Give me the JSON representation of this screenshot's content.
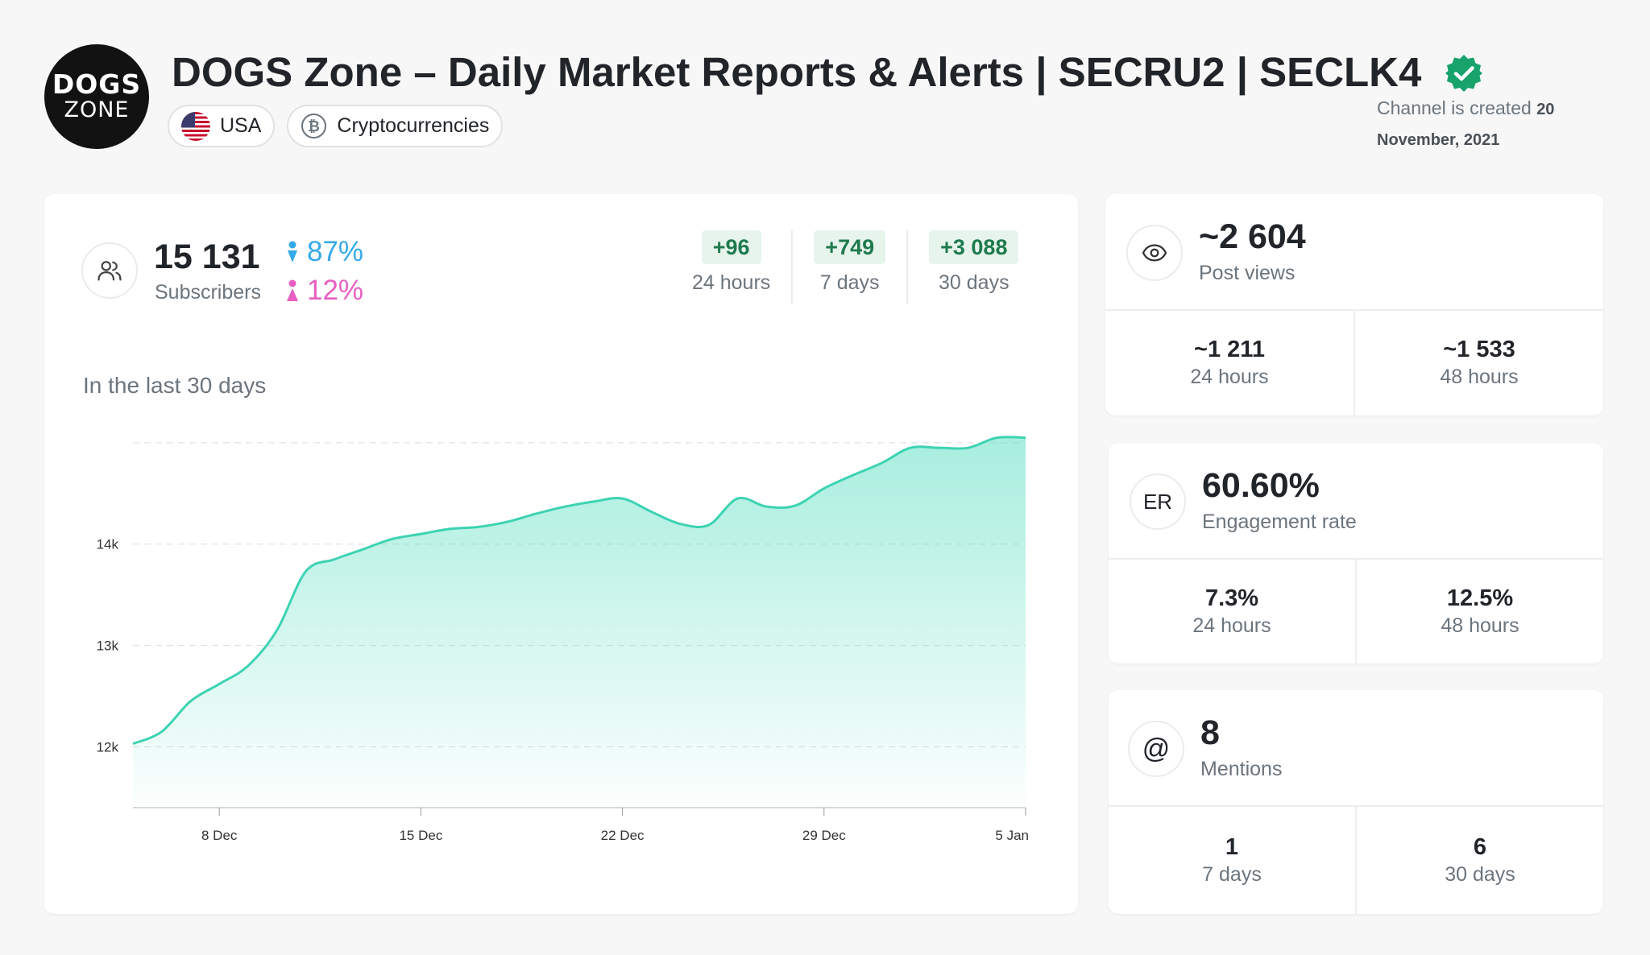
{
  "channel": {
    "avatar_line1": "DOGS",
    "avatar_line2": "ZONE",
    "title": "DOGS Zone – Daily Market Reports & Alerts | SECRU2 | SECLK4",
    "country": "USA",
    "category": "Cryptocurrencies",
    "created_prefix": "Channel is created",
    "created_date": "20 November, 2021"
  },
  "subscribers": {
    "count": "15 131",
    "label": "Subscribers",
    "male_pct": "87%",
    "female_pct": "12%",
    "deltas": [
      {
        "value": "+96",
        "label": "24 hours"
      },
      {
        "value": "+749",
        "label": "7 days"
      },
      {
        "value": "+3 088",
        "label": "30 days"
      }
    ],
    "chart_title": "In the last 30 days"
  },
  "post_views": {
    "value": "~2 604",
    "label": "Post views",
    "cells": [
      {
        "value": "~1 211",
        "label": "24 hours"
      },
      {
        "value": "~1 533",
        "label": "48 hours"
      }
    ]
  },
  "engagement": {
    "icon_text": "ER",
    "value": "60.60%",
    "label": "Engagement rate",
    "cells": [
      {
        "value": "7.3%",
        "label": "24 hours"
      },
      {
        "value": "12.5%",
        "label": "48 hours"
      }
    ]
  },
  "mentions": {
    "icon_text": "@",
    "value": "8",
    "label": "Mentions",
    "cells": [
      {
        "value": "1",
        "label": "7 days"
      },
      {
        "value": "6",
        "label": "30 days"
      }
    ]
  },
  "colors": {
    "accent_green": "#1f7a4d",
    "chart_line": "#3dd3b2",
    "male": "#35a9e8",
    "female": "#e75fc2"
  },
  "chart_data": {
    "type": "area",
    "title": "In the last 30 days",
    "xlabel": "",
    "ylabel": "",
    "x_ticks": [
      "8 Dec",
      "15 Dec",
      "22 Dec",
      "29 Dec",
      "5 Jan"
    ],
    "y_ticks": [
      "12k",
      "13k",
      "14k"
    ],
    "ylim": [
      11400,
      15150
    ],
    "x": [
      "5 Dec",
      "6 Dec",
      "7 Dec",
      "8 Dec",
      "9 Dec",
      "10 Dec",
      "11 Dec",
      "12 Dec",
      "13 Dec",
      "14 Dec",
      "15 Dec",
      "16 Dec",
      "17 Dec",
      "18 Dec",
      "19 Dec",
      "20 Dec",
      "21 Dec",
      "22 Dec",
      "23 Dec",
      "24 Dec",
      "25 Dec",
      "26 Dec",
      "27 Dec",
      "28 Dec",
      "29 Dec",
      "30 Dec",
      "31 Dec",
      "1 Jan",
      "2 Jan",
      "3 Jan",
      "4 Jan",
      "5 Jan"
    ],
    "series": [
      {
        "values": [
          12030,
          12150,
          12450,
          12620,
          12800,
          13150,
          13730,
          13850,
          13950,
          14050,
          14100,
          14150,
          14170,
          14220,
          14300,
          14370,
          14420,
          14450,
          14320,
          14200,
          14190,
          14450,
          14370,
          14380,
          14550,
          14680,
          14800,
          14950,
          14950,
          14950,
          15050,
          15050
        ]
      }
    ]
  }
}
